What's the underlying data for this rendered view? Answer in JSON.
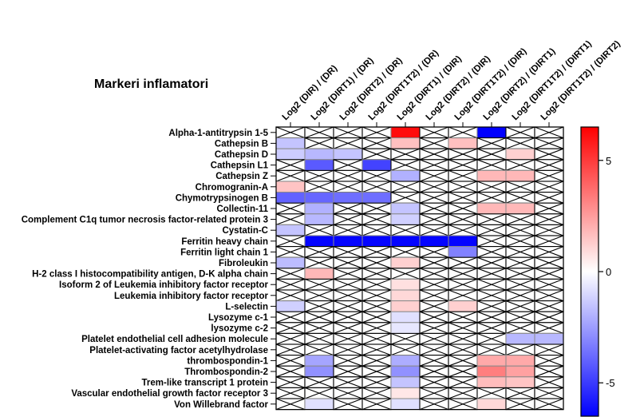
{
  "chart_data": {
    "type": "heatmap",
    "title": "Markeri inflamatori",
    "columns": [
      "Log2 (DIR) / (DR)",
      "Log2 (DIRT1) / (DR)",
      "Log2 (DIRT2) / (DR)",
      "Log2 (DIRT1T2) / (DR)",
      "Log2 (DIRT1) / (DIR)",
      "Log2 (DIRT2) / (DIR)",
      "Log2 (DIRT1T2) / (DIR)",
      "Log2 (DIRT2) / (DIRT1)",
      "Log2 (DIRT1T2) / (DIRT1)",
      "Log2 (DIRT1T2) / (DIRT2)"
    ],
    "rows": [
      "Alpha-1-antitrypsin 1-5",
      "Cathepsin B",
      "Cathepsin D",
      "Cathepsin L1",
      "Cathepsin Z",
      "Chromogranin-A",
      "Chymotrypsinogen B",
      "Collectin-11",
      "Complement C1q tumor necrosis factor-related protein 3",
      "Cystatin-C",
      "Ferritin heavy chain",
      "Ferritin light chain 1",
      "Fibroleukin",
      "H-2 class I histocompatibility antigen, D-K alpha chain",
      "Isoform 2 of Leukemia inhibitory factor receptor",
      "Leukemia inhibitory factor receptor",
      "L-selectin",
      "Lysozyme c-1",
      "lysozyme c-2",
      "Platelet endothelial cell adhesion molecule",
      "Platelet-activating factor acetylhydrolase",
      "thrombospondin-1",
      "Thrombospondin-2",
      "Trem-like transcript 1 protein",
      "Vascular endothelial growth factor receptor 3",
      "Von Willebrand factor"
    ],
    "values": [
      [
        null,
        null,
        null,
        null,
        6.2,
        null,
        null,
        -6.5,
        null,
        null
      ],
      [
        -1.5,
        null,
        null,
        null,
        1.6,
        null,
        1.6,
        null,
        null,
        null
      ],
      [
        -1.3,
        -1.8,
        -1.5,
        null,
        null,
        null,
        null,
        null,
        1.2,
        null
      ],
      [
        null,
        -4.2,
        null,
        -4.8,
        null,
        null,
        null,
        null,
        null,
        null
      ],
      [
        null,
        null,
        null,
        null,
        -2.0,
        null,
        null,
        1.8,
        1.8,
        null
      ],
      [
        1.5,
        null,
        null,
        null,
        null,
        null,
        null,
        null,
        null,
        null
      ],
      [
        -4.0,
        -3.9,
        -3.7,
        -3.7,
        null,
        null,
        null,
        null,
        null,
        null
      ],
      [
        null,
        -2.0,
        null,
        null,
        -1.5,
        null,
        null,
        1.8,
        1.8,
        null
      ],
      [
        null,
        -1.8,
        null,
        null,
        -1.2,
        null,
        null,
        null,
        null,
        null
      ],
      [
        -1.5,
        null,
        null,
        null,
        null,
        null,
        null,
        null,
        null,
        null
      ],
      [
        null,
        -6.4,
        -6.4,
        -6.4,
        -6.4,
        -6.4,
        -6.4,
        null,
        null,
        null
      ],
      [
        null,
        null,
        null,
        null,
        null,
        null,
        -3.2,
        null,
        null,
        null
      ],
      [
        -1.7,
        null,
        null,
        null,
        1.2,
        null,
        null,
        null,
        null,
        null
      ],
      [
        null,
        1.8,
        null,
        null,
        null,
        null,
        null,
        null,
        null,
        null
      ],
      [
        null,
        null,
        null,
        null,
        0.8,
        null,
        null,
        null,
        null,
        null
      ],
      [
        null,
        null,
        null,
        null,
        1.0,
        null,
        null,
        null,
        null,
        null
      ],
      [
        -1.2,
        null,
        null,
        null,
        1.2,
        null,
        1.2,
        null,
        null,
        null
      ],
      [
        null,
        null,
        null,
        null,
        -0.8,
        null,
        null,
        null,
        null,
        null
      ],
      [
        null,
        null,
        null,
        null,
        -0.6,
        null,
        null,
        null,
        null,
        null
      ],
      [
        null,
        null,
        null,
        null,
        null,
        null,
        null,
        null,
        -1.8,
        -1.8
      ],
      [
        null,
        null,
        null,
        null,
        null,
        null,
        null,
        null,
        null,
        null
      ],
      [
        null,
        -2.3,
        null,
        null,
        -2.1,
        null,
        null,
        2.2,
        2.2,
        null
      ],
      [
        null,
        -2.8,
        null,
        null,
        -2.8,
        null,
        null,
        3.3,
        2.4,
        null
      ],
      [
        null,
        null,
        null,
        null,
        -1.5,
        null,
        null,
        1.7,
        1.5,
        null
      ],
      [
        null,
        null,
        null,
        null,
        0.6,
        null,
        null,
        null,
        null,
        null
      ],
      [
        null,
        -0.8,
        null,
        null,
        -0.8,
        null,
        null,
        1.0,
        null,
        null
      ]
    ],
    "missing_marker": "crossed cell",
    "colorbar": {
      "min": -6.5,
      "max": 6.5,
      "ticks": [
        5,
        0,
        -5
      ],
      "colors": {
        "low": "#0000ff",
        "mid": "#ffffff",
        "high": "#ff0000"
      }
    }
  }
}
